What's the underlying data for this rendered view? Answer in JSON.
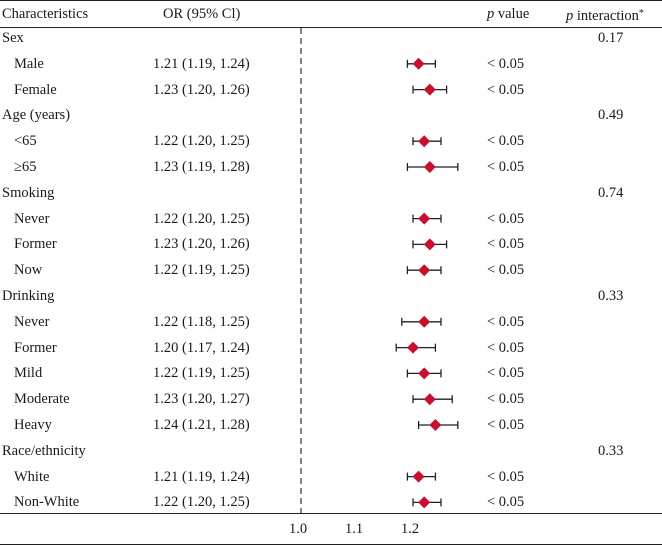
{
  "header": {
    "characteristics": "Characteristics",
    "or_ci": "OR (95% Cl)",
    "p_value_p": "p",
    "p_value_rest": " value",
    "p_interaction_p": "p",
    "p_interaction_rest": " interaction",
    "p_interaction_star": "*"
  },
  "chart_data": {
    "type": "forest",
    "x_ticks": [
      "1.0",
      "1.1",
      "1.2"
    ],
    "x_range": [
      1.0,
      1.3
    ],
    "reference_line": 1.0,
    "marker_color": "#c8102e",
    "rows": [
      {
        "kind": "group",
        "label": "Sex",
        "p_interaction": "0.17"
      },
      {
        "kind": "item",
        "label": "Male",
        "or_text": "1.21 (1.19, 1.24)",
        "or": 1.21,
        "lo": 1.19,
        "hi": 1.24,
        "p": "< 0.05"
      },
      {
        "kind": "item",
        "label": "Female",
        "or_text": "1.23 (1.20, 1.26)",
        "or": 1.23,
        "lo": 1.2,
        "hi": 1.26,
        "p": "< 0.05"
      },
      {
        "kind": "group",
        "label": "Age (years)",
        "p_interaction": "0.49"
      },
      {
        "kind": "item",
        "label": "<65",
        "or_text": "1.22 (1.20, 1.25)",
        "or": 1.22,
        "lo": 1.2,
        "hi": 1.25,
        "p": "< 0.05"
      },
      {
        "kind": "item",
        "label": "≥65",
        "or_text": "1.23 (1.19, 1.28)",
        "or": 1.23,
        "lo": 1.19,
        "hi": 1.28,
        "p": "< 0.05"
      },
      {
        "kind": "group",
        "label": "Smoking",
        "p_interaction": "0.74"
      },
      {
        "kind": "item",
        "label": "Never",
        "or_text": "1.22 (1.20, 1.25)",
        "or": 1.22,
        "lo": 1.2,
        "hi": 1.25,
        "p": "< 0.05"
      },
      {
        "kind": "item",
        "label": "Former",
        "or_text": "1.23 (1.20, 1.26)",
        "or": 1.23,
        "lo": 1.2,
        "hi": 1.26,
        "p": "< 0.05"
      },
      {
        "kind": "item",
        "label": "Now",
        "or_text": "1.22 (1.19, 1.25)",
        "or": 1.22,
        "lo": 1.19,
        "hi": 1.25,
        "p": "< 0.05"
      },
      {
        "kind": "group",
        "label": "Drinking",
        "p_interaction": "0.33"
      },
      {
        "kind": "item",
        "label": "Never",
        "or_text": "1.22 (1.18, 1.25)",
        "or": 1.22,
        "lo": 1.18,
        "hi": 1.25,
        "p": "< 0.05"
      },
      {
        "kind": "item",
        "label": "Former",
        "or_text": "1.20 (1.17, 1.24)",
        "or": 1.2,
        "lo": 1.17,
        "hi": 1.24,
        "p": "< 0.05"
      },
      {
        "kind": "item",
        "label": "Mild",
        "or_text": "1.22 (1.19, 1.25)",
        "or": 1.22,
        "lo": 1.19,
        "hi": 1.25,
        "p": "< 0.05"
      },
      {
        "kind": "item",
        "label": "Moderate",
        "or_text": "1.23 (1.20, 1.27)",
        "or": 1.23,
        "lo": 1.2,
        "hi": 1.27,
        "p": "< 0.05"
      },
      {
        "kind": "item",
        "label": "Heavy",
        "or_text": "1.24 (1.21, 1.28)",
        "or": 1.24,
        "lo": 1.21,
        "hi": 1.28,
        "p": "< 0.05"
      },
      {
        "kind": "group",
        "label": "Race/ethnicity",
        "p_interaction": "0.33"
      },
      {
        "kind": "item",
        "label": "White",
        "or_text": "1.21 (1.19, 1.24)",
        "or": 1.21,
        "lo": 1.19,
        "hi": 1.24,
        "p": "< 0.05"
      },
      {
        "kind": "item",
        "label": "Non-White",
        "or_text": "1.22 (1.20, 1.25)",
        "or": 1.22,
        "lo": 1.2,
        "hi": 1.25,
        "p": "< 0.05"
      }
    ]
  }
}
